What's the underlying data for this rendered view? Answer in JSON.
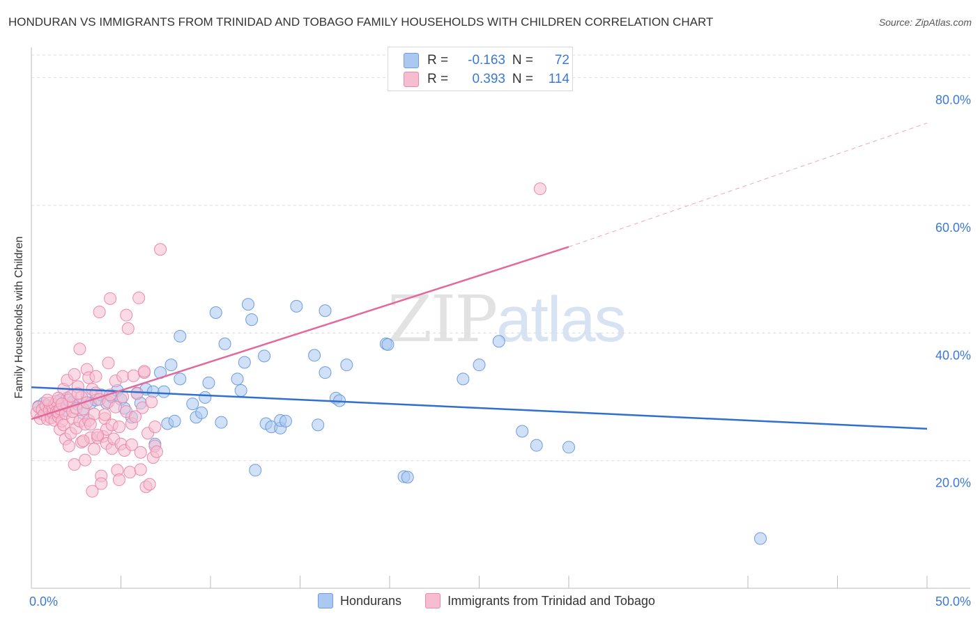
{
  "title": "HONDURAN VS IMMIGRANTS FROM TRINIDAD AND TOBAGO FAMILY HOUSEHOLDS WITH CHILDREN CORRELATION CHART",
  "source": "Source: ZipAtlas.com",
  "watermark": {
    "part1": "ZIP",
    "part2": "atlas"
  },
  "colors": {
    "blue_fill": "#aac8f0",
    "blue_stroke": "#6d9be0",
    "blue_line": "#2f6fd1",
    "pink_fill": "#f6bdd0",
    "pink_stroke": "#ec88aa",
    "pink_line": "#e4689a",
    "axis_text": "#3b78d6",
    "grid": "#dddddd"
  },
  "legend": {
    "rows": [
      {
        "r_label": "R =",
        "r_value": "-0.163",
        "n_label": "N =",
        "n_value": "72",
        "color": "#aac8f0",
        "border": "#6d9be0"
      },
      {
        "r_label": "R =",
        "r_value": "0.393",
        "n_label": "N =",
        "n_value": "114",
        "color": "#f6bdd0",
        "border": "#ec88aa"
      }
    ]
  },
  "chart_data": {
    "type": "scatter",
    "title": "HONDURAN VS IMMIGRANTS FROM TRINIDAD AND TOBAGO FAMILY HOUSEHOLDS WITH CHILDREN CORRELATION CHART",
    "xlabel": "",
    "ylabel": "Family Households with Children",
    "xlim": [
      0,
      50
    ],
    "ylim": [
      0,
      84
    ],
    "x_tick_labels": [
      {
        "value": 0,
        "label": "0.0%"
      },
      {
        "value": 50,
        "label": "50.0%"
      }
    ],
    "y_tick_labels": [
      {
        "value": 20,
        "label": "20.0%"
      },
      {
        "value": 40,
        "label": "40.0%"
      },
      {
        "value": 60,
        "label": "60.0%"
      },
      {
        "value": 80,
        "label": "80.0%"
      }
    ],
    "x_minor_ticks": [
      5,
      10,
      15,
      20,
      25,
      30,
      40,
      45,
      50
    ],
    "grid": "horizontal dashed",
    "legend_position": "top-center",
    "series": [
      {
        "name": "Hondurans",
        "color": "#aac8f0",
        "points": [
          [
            0.4,
            28.5
          ],
          [
            0.7,
            29.0
          ],
          [
            0.9,
            28.0
          ],
          [
            1.1,
            27.5
          ],
          [
            1.3,
            28.8
          ],
          [
            1.6,
            29.5
          ],
          [
            1.8,
            27.8
          ],
          [
            2.0,
            29.8
          ],
          [
            2.3,
            29.2
          ],
          [
            2.6,
            28.8
          ],
          [
            2.9,
            27.4
          ],
          [
            3.1,
            30.2
          ],
          [
            3.3,
            29.0
          ],
          [
            3.6,
            29.5
          ],
          [
            3.9,
            30.3
          ],
          [
            4.2,
            29.0
          ],
          [
            4.5,
            30.0
          ],
          [
            4.8,
            31.0
          ],
          [
            5.0,
            29.6
          ],
          [
            5.2,
            28.2
          ],
          [
            5.6,
            26.8
          ],
          [
            5.9,
            30.6
          ],
          [
            6.1,
            29.0
          ],
          [
            6.4,
            31.2
          ],
          [
            6.8,
            30.8
          ],
          [
            6.9,
            22.6
          ],
          [
            7.2,
            33.8
          ],
          [
            7.4,
            30.8
          ],
          [
            7.6,
            25.8
          ],
          [
            7.8,
            35.0
          ],
          [
            8.0,
            26.2
          ],
          [
            8.3,
            32.8
          ],
          [
            8.3,
            39.5
          ],
          [
            9.0,
            28.9
          ],
          [
            9.2,
            26.8
          ],
          [
            9.5,
            27.5
          ],
          [
            9.7,
            29.9
          ],
          [
            9.9,
            32.2
          ],
          [
            10.3,
            43.2
          ],
          [
            10.6,
            26.0
          ],
          [
            10.8,
            38.3
          ],
          [
            11.5,
            32.8
          ],
          [
            11.7,
            31.0
          ],
          [
            11.9,
            35.4
          ],
          [
            12.1,
            44.5
          ],
          [
            12.3,
            42.1
          ],
          [
            12.5,
            18.5
          ],
          [
            13.0,
            36.4
          ],
          [
            13.1,
            25.8
          ],
          [
            13.4,
            25.3
          ],
          [
            13.9,
            25.1
          ],
          [
            13.9,
            26.3
          ],
          [
            14.2,
            26.2
          ],
          [
            14.8,
            44.2
          ],
          [
            15.8,
            36.5
          ],
          [
            16.0,
            25.6
          ],
          [
            16.4,
            33.8
          ],
          [
            16.4,
            43.5
          ],
          [
            17.0,
            29.8
          ],
          [
            17.2,
            29.4
          ],
          [
            17.6,
            35.0
          ],
          [
            19.8,
            38.3
          ],
          [
            19.9,
            38.2
          ],
          [
            20.8,
            17.5
          ],
          [
            21.0,
            17.4
          ],
          [
            24.1,
            32.8
          ],
          [
            25.0,
            35.0
          ],
          [
            26.1,
            38.7
          ],
          [
            27.4,
            24.6
          ],
          [
            28.2,
            22.4
          ],
          [
            30.0,
            22.1
          ],
          [
            40.7,
            7.8
          ]
        ]
      },
      {
        "name": "Immigrants from Trinidad and Tobago",
        "color": "#f6bdd0",
        "points": [
          [
            0.3,
            27.5
          ],
          [
            0.4,
            28.4
          ],
          [
            0.5,
            26.6
          ],
          [
            0.6,
            28.0
          ],
          [
            0.7,
            27.2
          ],
          [
            0.8,
            28.6
          ],
          [
            0.9,
            26.5
          ],
          [
            1.0,
            27.9
          ],
          [
            1.0,
            29.0
          ],
          [
            1.1,
            26.7
          ],
          [
            1.2,
            27.5
          ],
          [
            1.2,
            28.3
          ],
          [
            1.3,
            26.3
          ],
          [
            1.3,
            28.8
          ],
          [
            1.4,
            27.7
          ],
          [
            1.4,
            29.3
          ],
          [
            1.5,
            26.9
          ],
          [
            1.5,
            27.6
          ],
          [
            1.6,
            24.9
          ],
          [
            1.6,
            28.1
          ],
          [
            1.7,
            26.2
          ],
          [
            1.8,
            31.2
          ],
          [
            1.8,
            25.6
          ],
          [
            1.9,
            27.4
          ],
          [
            1.9,
            23.4
          ],
          [
            2.0,
            32.6
          ],
          [
            2.0,
            28.6
          ],
          [
            2.1,
            29.5
          ],
          [
            2.1,
            22.3
          ],
          [
            2.2,
            24.3
          ],
          [
            2.2,
            30.1
          ],
          [
            2.3,
            26.6
          ],
          [
            2.3,
            27.7
          ],
          [
            2.4,
            19.4
          ],
          [
            2.4,
            33.5
          ],
          [
            2.5,
            28.2
          ],
          [
            2.5,
            25.1
          ],
          [
            2.6,
            31.6
          ],
          [
            2.7,
            26.2
          ],
          [
            2.7,
            37.5
          ],
          [
            2.8,
            30.0
          ],
          [
            2.8,
            22.9
          ],
          [
            2.9,
            28.1
          ],
          [
            3.0,
            20.1
          ],
          [
            3.0,
            25.7
          ],
          [
            3.1,
            34.3
          ],
          [
            3.1,
            29.1
          ],
          [
            3.2,
            26.3
          ],
          [
            3.2,
            33.0
          ],
          [
            3.3,
            23.6
          ],
          [
            3.4,
            31.2
          ],
          [
            3.4,
            15.2
          ],
          [
            3.5,
            27.3
          ],
          [
            3.5,
            21.8
          ],
          [
            3.6,
            33.2
          ],
          [
            3.6,
            30.6
          ],
          [
            3.7,
            23.6
          ],
          [
            3.8,
            29.6
          ],
          [
            3.8,
            43.3
          ],
          [
            3.9,
            17.6
          ],
          [
            3.9,
            16.4
          ],
          [
            4.0,
            23.8
          ],
          [
            4.1,
            26.6
          ],
          [
            4.2,
            22.7
          ],
          [
            4.2,
            24.9
          ],
          [
            4.3,
            35.3
          ],
          [
            4.3,
            29.2
          ],
          [
            4.4,
            45.4
          ],
          [
            4.4,
            30.3
          ],
          [
            4.5,
            25.6
          ],
          [
            4.5,
            21.9
          ],
          [
            4.6,
            23.4
          ],
          [
            4.7,
            28.4
          ],
          [
            4.7,
            32.5
          ],
          [
            4.8,
            18.5
          ],
          [
            4.9,
            25.3
          ],
          [
            4.9,
            17.0
          ],
          [
            5.0,
            22.6
          ],
          [
            5.1,
            30.0
          ],
          [
            5.1,
            33.2
          ],
          [
            5.2,
            21.6
          ],
          [
            5.3,
            27.7
          ],
          [
            5.3,
            42.8
          ],
          [
            5.4,
            40.7
          ],
          [
            5.5,
            18.2
          ],
          [
            5.6,
            25.8
          ],
          [
            5.7,
            33.3
          ],
          [
            5.8,
            26.9
          ],
          [
            5.9,
            30.5
          ],
          [
            6.0,
            45.5
          ],
          [
            6.1,
            21.3
          ],
          [
            6.1,
            18.6
          ],
          [
            6.2,
            28.3
          ],
          [
            6.3,
            33.8
          ],
          [
            6.4,
            15.9
          ],
          [
            6.5,
            24.3
          ],
          [
            6.6,
            16.3
          ],
          [
            6.7,
            29.2
          ],
          [
            6.8,
            20.5
          ],
          [
            6.9,
            25.3
          ],
          [
            6.9,
            22.3
          ],
          [
            7.0,
            21.4
          ],
          [
            6.3,
            34.0
          ],
          [
            7.2,
            53.1
          ],
          [
            1.5,
            29.8
          ],
          [
            2.6,
            30.5
          ],
          [
            3.3,
            25.7
          ],
          [
            4.1,
            27.2
          ],
          [
            0.9,
            29.5
          ],
          [
            1.7,
            28.9
          ],
          [
            2.9,
            23.1
          ],
          [
            3.7,
            24.0
          ],
          [
            5.6,
            22.5
          ],
          [
            28.4,
            62.6
          ]
        ]
      }
    ],
    "trend_lines": [
      {
        "series": "Hondurans",
        "x_start": 0,
        "y_start": 31.5,
        "x_end": 50,
        "y_end": 25.0,
        "style": "solid"
      },
      {
        "series": "Immigrants from Trinidad and Tobago",
        "x_start": 0,
        "y_start": 26.5,
        "x_end": 30,
        "y_end": 53.5,
        "style": "solid"
      },
      {
        "series": "Immigrants from Trinidad and Tobago",
        "x_start": 30,
        "y_start": 53.5,
        "x_end": 50,
        "y_end": 72.9,
        "style": "dashed"
      }
    ]
  }
}
